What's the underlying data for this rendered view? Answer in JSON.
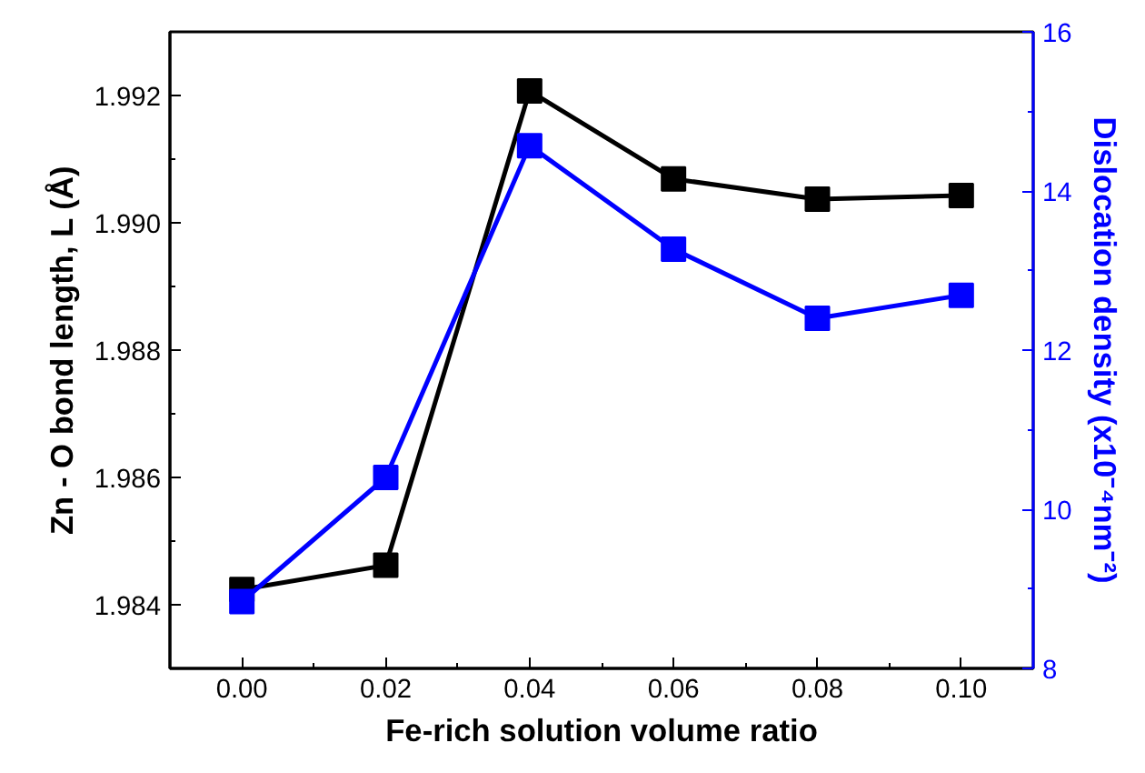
{
  "chart_data": {
    "type": "line",
    "xlabel": "Fe-rich solution volume ratio",
    "ylabel": "Zn - O bond length, L (Å)",
    "y2label": "Dislocation density (x10⁻⁴nm⁻²)",
    "x": [
      0.0,
      0.02,
      0.04,
      0.06,
      0.08,
      0.1
    ],
    "series": [
      {
        "color": "#000000",
        "values": [
          1.98424,
          1.98462,
          1.99207,
          1.99069,
          1.99037,
          1.99043
        ]
      },
      {
        "color": "#0000ff",
        "axis": "y2",
        "values": [
          8.84,
          10.4,
          14.57,
          13.27,
          12.4,
          12.69
        ]
      }
    ],
    "xlim": [
      -0.01,
      0.11
    ],
    "xticks": [
      {
        "value": -0.01,
        "label": null
      },
      {
        "value": 0.0,
        "label": "0.00"
      },
      {
        "value": 0.01,
        "label": null
      },
      {
        "value": 0.02,
        "label": "0.02"
      },
      {
        "value": 0.03,
        "label": null
      },
      {
        "value": 0.04,
        "label": "0.04"
      },
      {
        "value": 0.05,
        "label": null
      },
      {
        "value": 0.06,
        "label": "0.06"
      },
      {
        "value": 0.07,
        "label": null
      },
      {
        "value": 0.08,
        "label": "0.08"
      },
      {
        "value": 0.09,
        "label": null
      },
      {
        "value": 0.1,
        "label": "0.10"
      }
    ],
    "ylim": [
      1.983,
      1.993
    ],
    "yticks": [
      {
        "value": 1.983,
        "label": null
      },
      1.984,
      {
        "value": 1.985,
        "label": null
      },
      1.986,
      {
        "value": 1.987,
        "label": null
      },
      1.988,
      {
        "value": 1.989,
        "label": null
      },
      "1.990",
      {
        "value": 1.991,
        "label": null
      },
      1.992
    ],
    "y2lim": [
      8,
      16
    ],
    "y2ticks": [
      8,
      {
        "value": 9,
        "label": null
      },
      10,
      {
        "value": 11,
        "label": null
      },
      12,
      {
        "value": 13,
        "label": null
      },
      14,
      {
        "value": 15,
        "label": null
      },
      16
    ],
    "marker": "square",
    "line_style": "solid",
    "grid": false
  }
}
